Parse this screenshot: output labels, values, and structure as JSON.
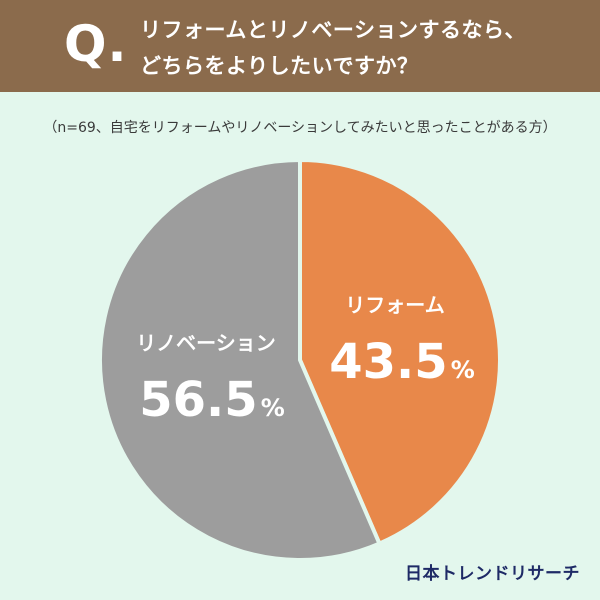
{
  "question": {
    "mark": "Q.",
    "line1": "リフォームとリノベーションするなら、",
    "line2": "どちらをよりしたいですか？"
  },
  "note": "（n=69、自宅をリフォームやリノベーションしてみたいと思ったことがある方）",
  "brand": "日本トレンドリサーチ",
  "colors": {
    "header_bg": "#8b6b4c",
    "page_bg": "#e3f7ed",
    "reform": "#e8884a",
    "renovation": "#9d9d9d",
    "brand": "#1e2a66"
  },
  "chart_data": {
    "type": "pie",
    "title": "リフォームとリノベーションするなら、どちらをよりしたいですか？",
    "slices": [
      {
        "label": "リフォーム",
        "value": 43.5,
        "display": "43.5",
        "unit": "%",
        "color": "#e8884a"
      },
      {
        "label": "リノベーション",
        "value": 56.5,
        "display": "56.5",
        "unit": "%",
        "color": "#9d9d9d"
      }
    ]
  }
}
